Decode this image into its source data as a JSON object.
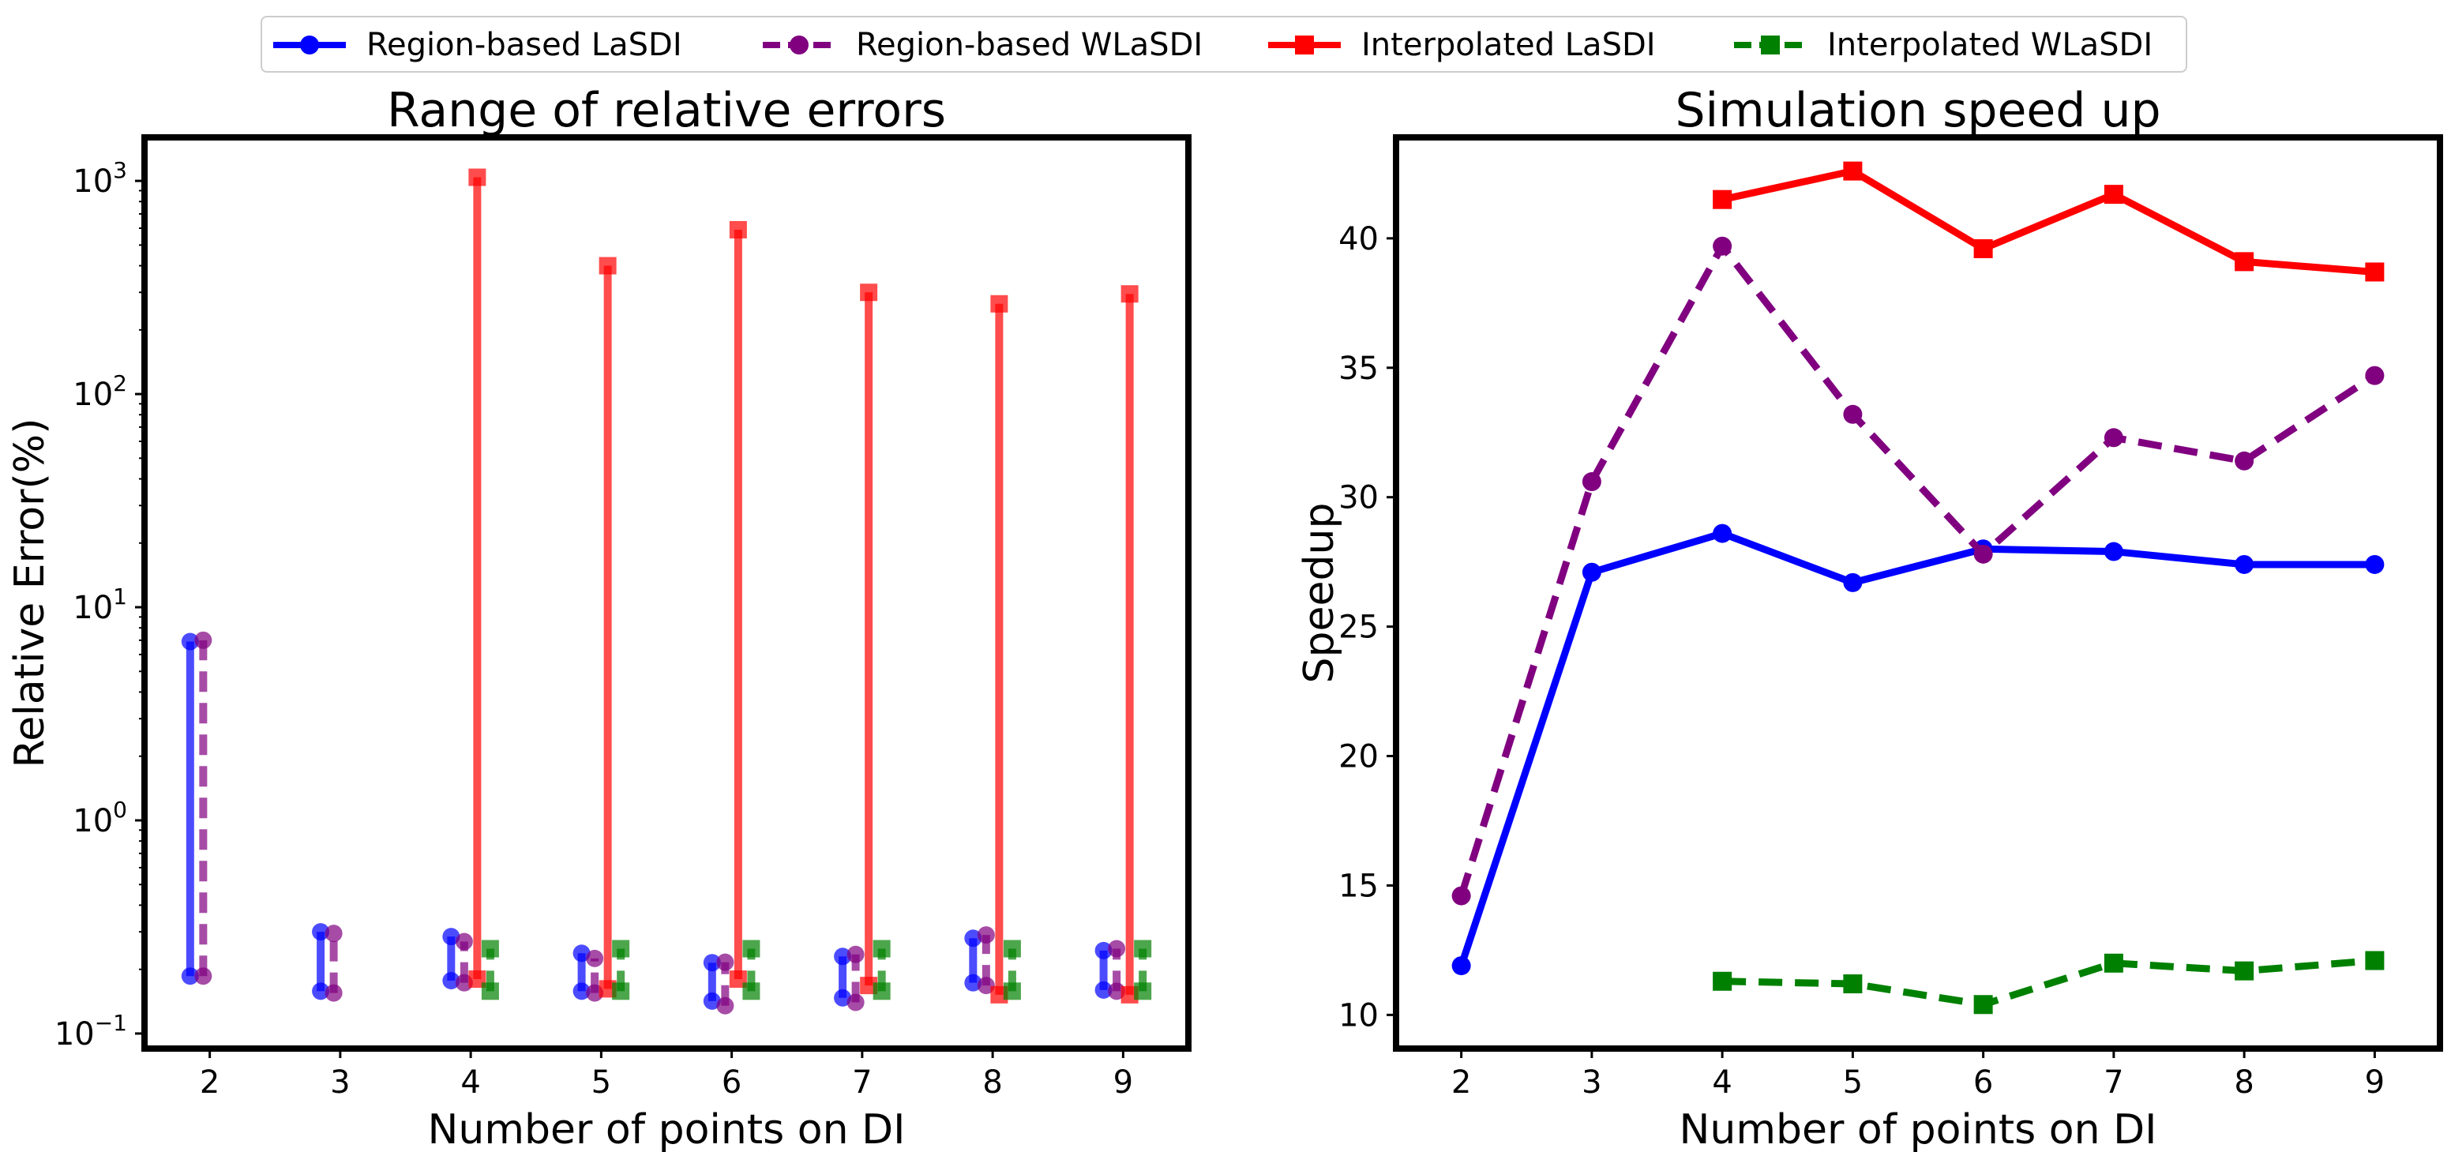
{
  "legend": {
    "items": [
      {
        "label": "Region-based LaSDI",
        "color": "#0000ff",
        "dash": false,
        "marker": "circle"
      },
      {
        "label": "Region-based WLaSDI",
        "color": "#800080",
        "dash": true,
        "marker": "circle"
      },
      {
        "label": "Interpolated LaSDI",
        "color": "#ff0000",
        "dash": false,
        "marker": "square"
      },
      {
        "label": "Interpolated WLaSDI",
        "color": "#008000",
        "dash": true,
        "marker": "square"
      }
    ]
  },
  "chart_data": [
    {
      "type": "range",
      "title": "Range of relative errors",
      "xlabel": "Number of points on DI",
      "ylabel": "Relative Error(%)",
      "yscale": "log",
      "ylim": [
        0.085,
        1600
      ],
      "xlim": [
        1.5,
        9.5
      ],
      "x_ticks": [
        2,
        3,
        4,
        5,
        6,
        7,
        8,
        9
      ],
      "y_ticks": [
        {
          "value": 0.1,
          "base": "10",
          "exp": "−1"
        },
        {
          "value": 1,
          "base": "10",
          "exp": "0"
        },
        {
          "value": 10,
          "base": "10",
          "exp": "1"
        },
        {
          "value": 100,
          "base": "10",
          "exp": "2"
        },
        {
          "value": 1000,
          "base": "10",
          "exp": "3"
        }
      ],
      "series": [
        {
          "name": "Region-based LaSDI",
          "color": "#0000ff",
          "dash": false,
          "marker": "circle",
          "offset": -0.15,
          "x": [
            2,
            3,
            4,
            5,
            6,
            7,
            8,
            9
          ],
          "min": [
            0.186,
            0.158,
            0.177,
            0.158,
            0.142,
            0.147,
            0.173,
            0.16
          ],
          "max": [
            6.9,
            0.3,
            0.285,
            0.238,
            0.215,
            0.23,
            0.28,
            0.245
          ]
        },
        {
          "name": "Region-based WLaSDI",
          "color": "#800080",
          "dash": true,
          "marker": "circle",
          "offset": -0.05,
          "x": [
            2,
            3,
            4,
            5,
            6,
            7,
            8,
            9
          ],
          "min": [
            0.186,
            0.155,
            0.173,
            0.155,
            0.135,
            0.14,
            0.168,
            0.158
          ],
          "max": [
            7.0,
            0.295,
            0.27,
            0.225,
            0.216,
            0.235,
            0.29,
            0.25
          ]
        },
        {
          "name": "Interpolated LaSDI",
          "color": "#ff0000",
          "dash": false,
          "marker": "square",
          "offset": 0.05,
          "x": [
            4,
            5,
            6,
            7,
            8,
            9
          ],
          "min": [
            0.18,
            0.162,
            0.18,
            0.168,
            0.152,
            0.152
          ],
          "max": [
            1040,
            400,
            590,
            300,
            265,
            295
          ]
        },
        {
          "name": "Interpolated WLaSDI",
          "color": "#008000",
          "dash": true,
          "marker": "square",
          "offset": 0.15,
          "x": [
            4,
            5,
            6,
            7,
            8,
            9
          ],
          "min": [
            0.158,
            0.158,
            0.158,
            0.158,
            0.158,
            0.158
          ],
          "max": [
            0.25,
            0.25,
            0.25,
            0.25,
            0.25,
            0.25
          ]
        }
      ]
    },
    {
      "type": "line",
      "title": "Simulation speed up",
      "xlabel": "Number of points on DI",
      "ylabel": "Speedup",
      "ylim": [
        8.7,
        43.9
      ],
      "xlim": [
        1.5,
        9.5
      ],
      "x_ticks": [
        2,
        3,
        4,
        5,
        6,
        7,
        8,
        9
      ],
      "y_ticks": [
        10,
        15,
        20,
        25,
        30,
        35,
        40
      ],
      "series": [
        {
          "name": "Region-based LaSDI",
          "color": "#0000ff",
          "dash": false,
          "marker": "circle",
          "x": [
            2,
            3,
            4,
            5,
            6,
            7,
            8,
            9
          ],
          "values": [
            11.9,
            27.1,
            28.6,
            26.7,
            28.0,
            27.9,
            27.4,
            27.4
          ]
        },
        {
          "name": "Region-based WLaSDI",
          "color": "#800080",
          "dash": true,
          "marker": "circle",
          "x": [
            2,
            3,
            4,
            5,
            6,
            7,
            8,
            9
          ],
          "values": [
            14.6,
            30.6,
            39.7,
            33.2,
            27.8,
            32.3,
            31.4,
            34.7
          ]
        },
        {
          "name": "Interpolated LaSDI",
          "color": "#ff0000",
          "dash": false,
          "marker": "square",
          "x": [
            4,
            5,
            6,
            7,
            8,
            9
          ],
          "values": [
            41.5,
            42.6,
            39.6,
            41.7,
            39.1,
            38.7
          ]
        },
        {
          "name": "Interpolated WLaSDI",
          "color": "#008000",
          "dash": true,
          "marker": "square",
          "x": [
            4,
            5,
            6,
            7,
            8,
            9
          ],
          "values": [
            11.3,
            11.2,
            10.4,
            12.0,
            11.7,
            12.1
          ]
        }
      ]
    }
  ]
}
